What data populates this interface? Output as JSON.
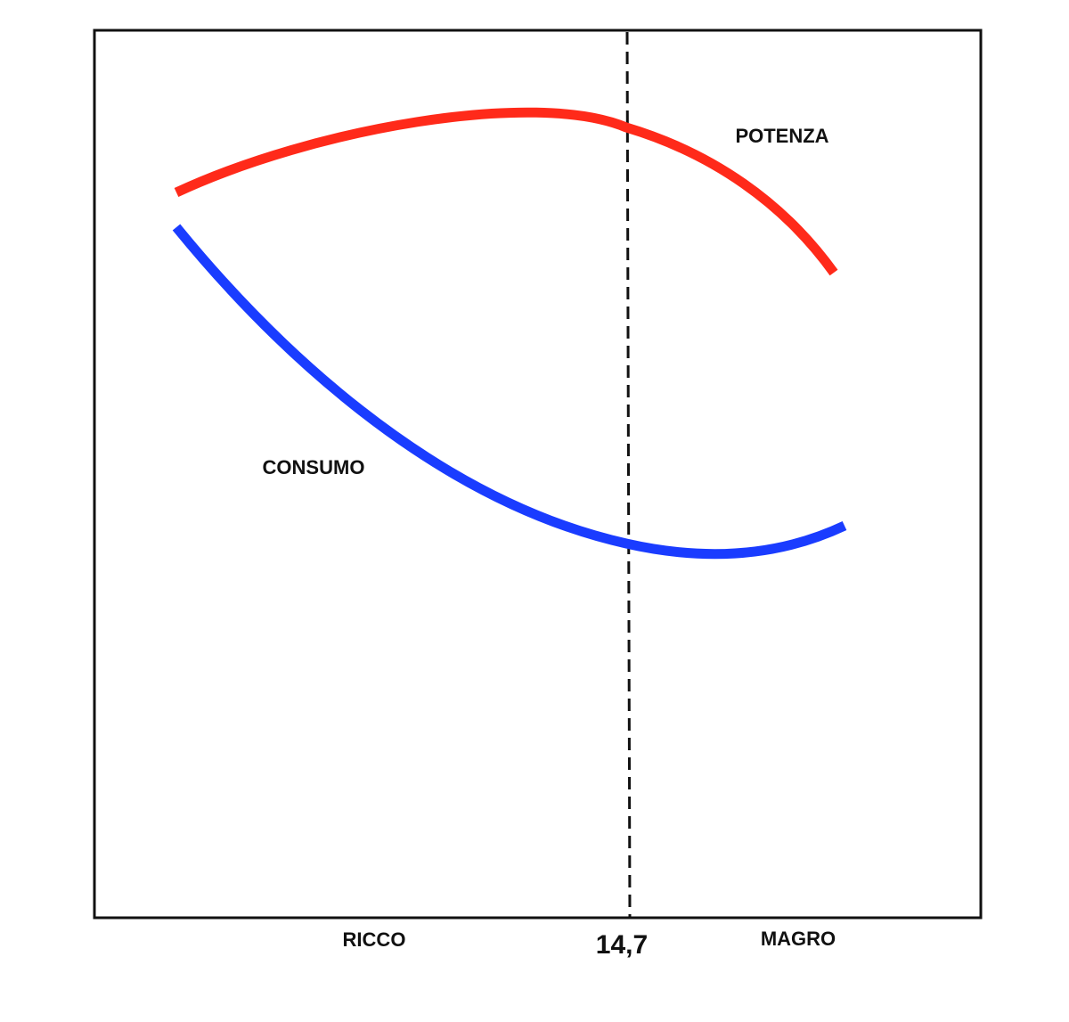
{
  "curves": {
    "power": "POTENZA",
    "consumption": "CONSUMO"
  },
  "x_axis": {
    "left": "RICCO",
    "center": "14,7",
    "right": "MAGRO"
  }
}
